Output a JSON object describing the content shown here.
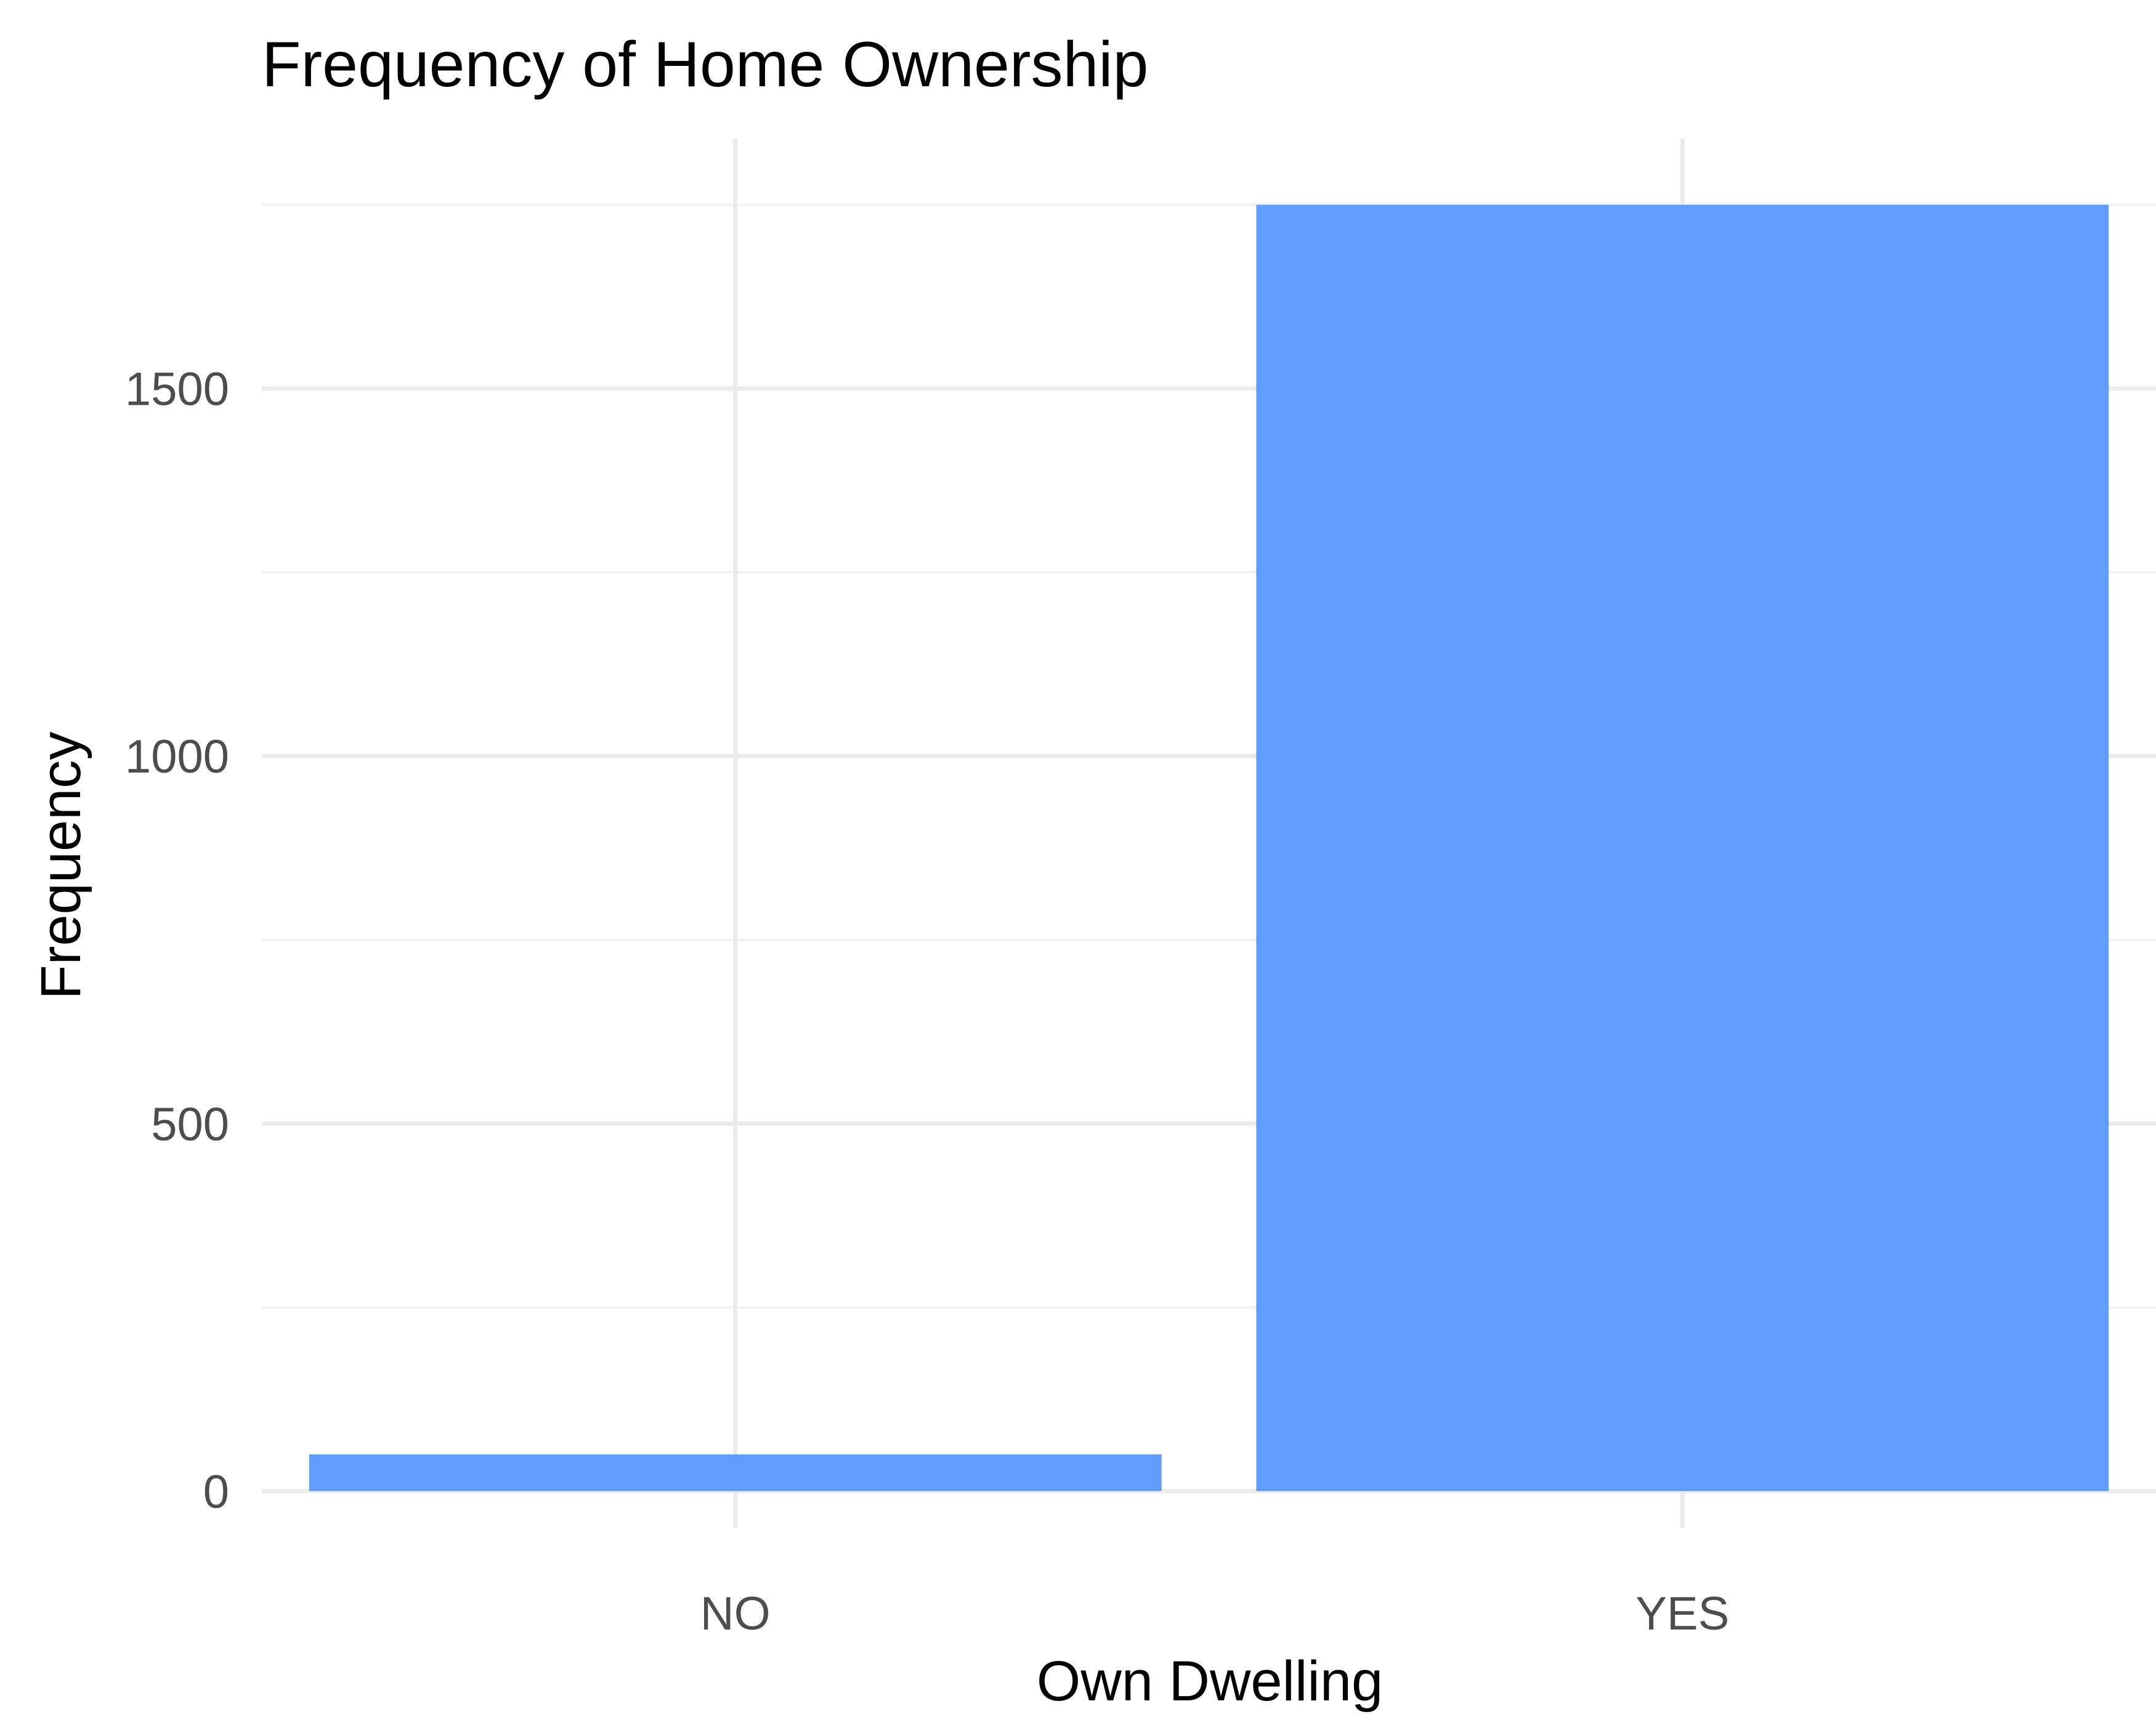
{
  "chart_data": {
    "type": "bar",
    "title": "Frequency of Home Ownership",
    "xlabel": "Own Dwelling",
    "ylabel": "Frequency",
    "categories": [
      "NO",
      "YES"
    ],
    "values": [
      50,
      1750
    ],
    "ylim": [
      -50,
      1840
    ],
    "yticks": [
      0,
      500,
      1000,
      1500
    ],
    "yticks_minor": [
      250,
      750,
      1250,
      1750
    ],
    "grid": true,
    "legend": "none",
    "bar_color": "#619CFF"
  }
}
